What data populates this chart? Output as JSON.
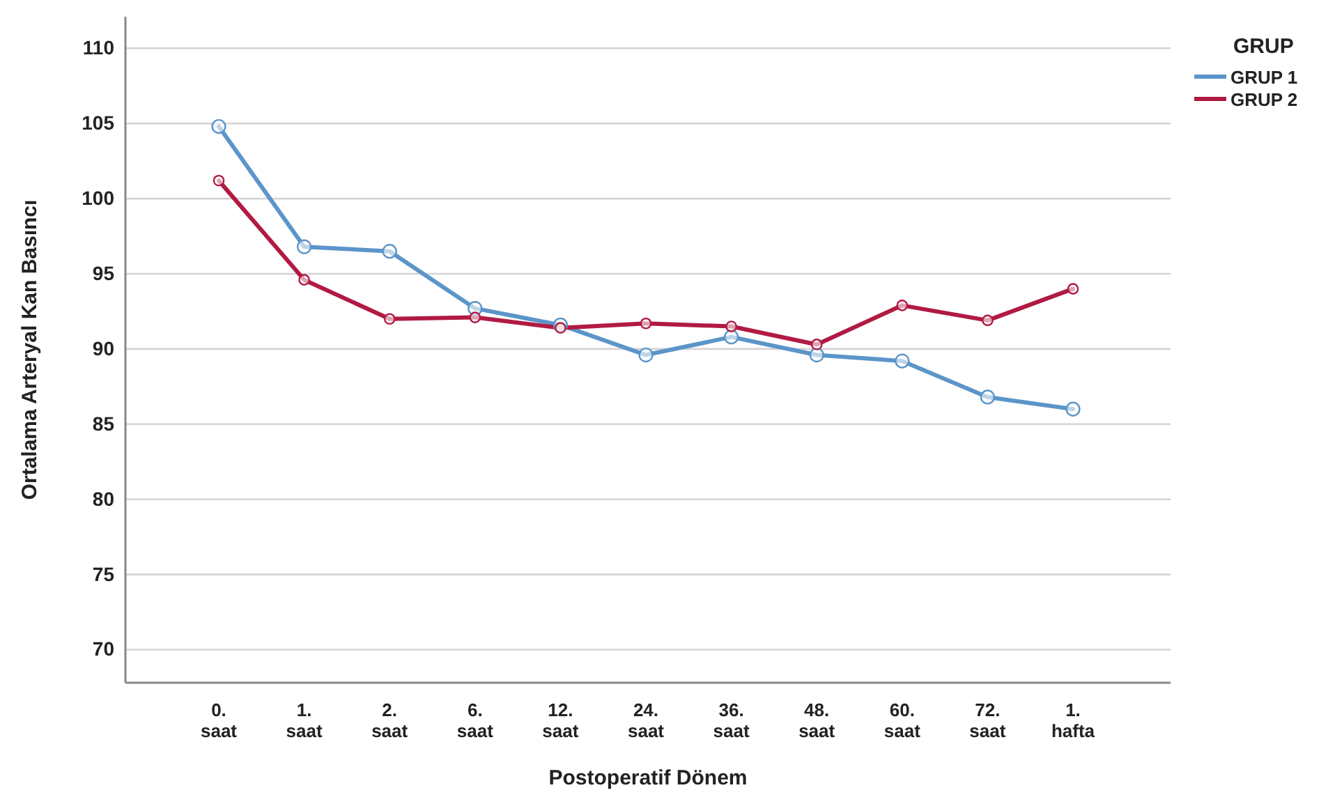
{
  "chart_data": {
    "type": "line",
    "xlabel": "Postoperatif Dönem",
    "ylabel": "Ortalama Arteryal Kan Basıncı",
    "legend_title": "GRUP",
    "categories": [
      "0. saat",
      "1. saat",
      "2. saat",
      "6. saat",
      "12. saat",
      "24. saat",
      "36. saat",
      "48. saat",
      "60. saat",
      "72. saat",
      "1. hafta"
    ],
    "series": [
      {
        "name": "GRUP 1",
        "color": "#5b95c9",
        "values": [
          104.8,
          96.8,
          96.5,
          92.7,
          91.6,
          89.6,
          90.8,
          89.6,
          89.2,
          86.8,
          86.0
        ]
      },
      {
        "name": "GRUP 2",
        "color": "#b11a42",
        "values": [
          101.2,
          94.6,
          92.0,
          92.1,
          91.4,
          91.7,
          91.5,
          90.3,
          92.9,
          91.9,
          94.0
        ]
      }
    ],
    "ylim": [
      67.8,
      112.1
    ],
    "yticks": [
      70,
      75,
      80,
      85,
      90,
      95,
      100,
      105,
      110
    ],
    "grid": "y",
    "legend": "top right",
    "marker": "circle",
    "line_style": "solid"
  }
}
